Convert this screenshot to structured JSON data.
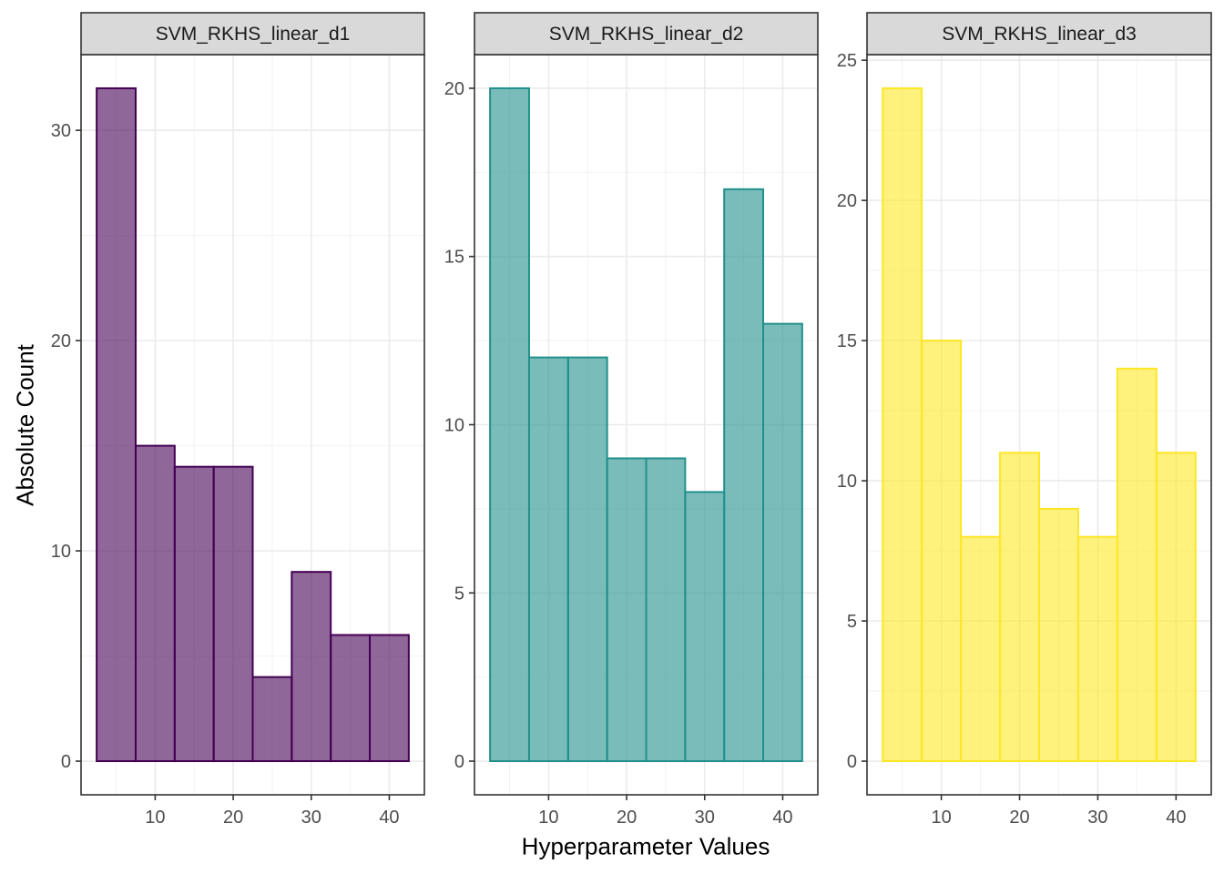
{
  "chart_data": [
    {
      "type": "bar",
      "title": "SVM_RKHS_linear_d1",
      "bin_edges": [
        2.5,
        7.5,
        12.5,
        17.5,
        22.5,
        27.5,
        32.5,
        37.5,
        42.5
      ],
      "values": [
        32,
        15,
        14,
        14,
        4,
        9,
        6,
        6
      ],
      "xlim": [
        0.5,
        44.5
      ],
      "ylim": [
        -1.6,
        33.6
      ],
      "xticks": [
        10,
        20,
        30,
        40
      ],
      "yticks": [
        0,
        10,
        20,
        30
      ],
      "fill": "#440154",
      "grid": true
    },
    {
      "type": "bar",
      "title": "SVM_RKHS_linear_d2",
      "bin_edges": [
        2.5,
        7.5,
        12.5,
        17.5,
        22.5,
        27.5,
        32.5,
        37.5,
        42.5
      ],
      "values": [
        20,
        12,
        12,
        9,
        9,
        8,
        17,
        13
      ],
      "xlim": [
        0.5,
        44.5
      ],
      "ylim": [
        -1.0,
        21.0
      ],
      "xticks": [
        10,
        20,
        30,
        40
      ],
      "yticks": [
        0,
        5,
        10,
        15,
        20
      ],
      "fill": "#21908C",
      "grid": true
    },
    {
      "type": "bar",
      "title": "SVM_RKHS_linear_d3",
      "bin_edges": [
        2.5,
        7.5,
        12.5,
        17.5,
        22.5,
        27.5,
        32.5,
        37.5,
        42.5
      ],
      "values": [
        24,
        15,
        8,
        11,
        9,
        8,
        14,
        11
      ],
      "xlim": [
        0.5,
        44.5
      ],
      "ylim": [
        -1.2,
        25.2
      ],
      "xticks": [
        10,
        20,
        30,
        40
      ],
      "yticks": [
        0,
        5,
        10,
        15,
        20,
        25
      ],
      "fill": "#FDE725",
      "grid": true
    }
  ],
  "xlabel": "Hyperparameter Values",
  "ylabel": "Absolute Count"
}
